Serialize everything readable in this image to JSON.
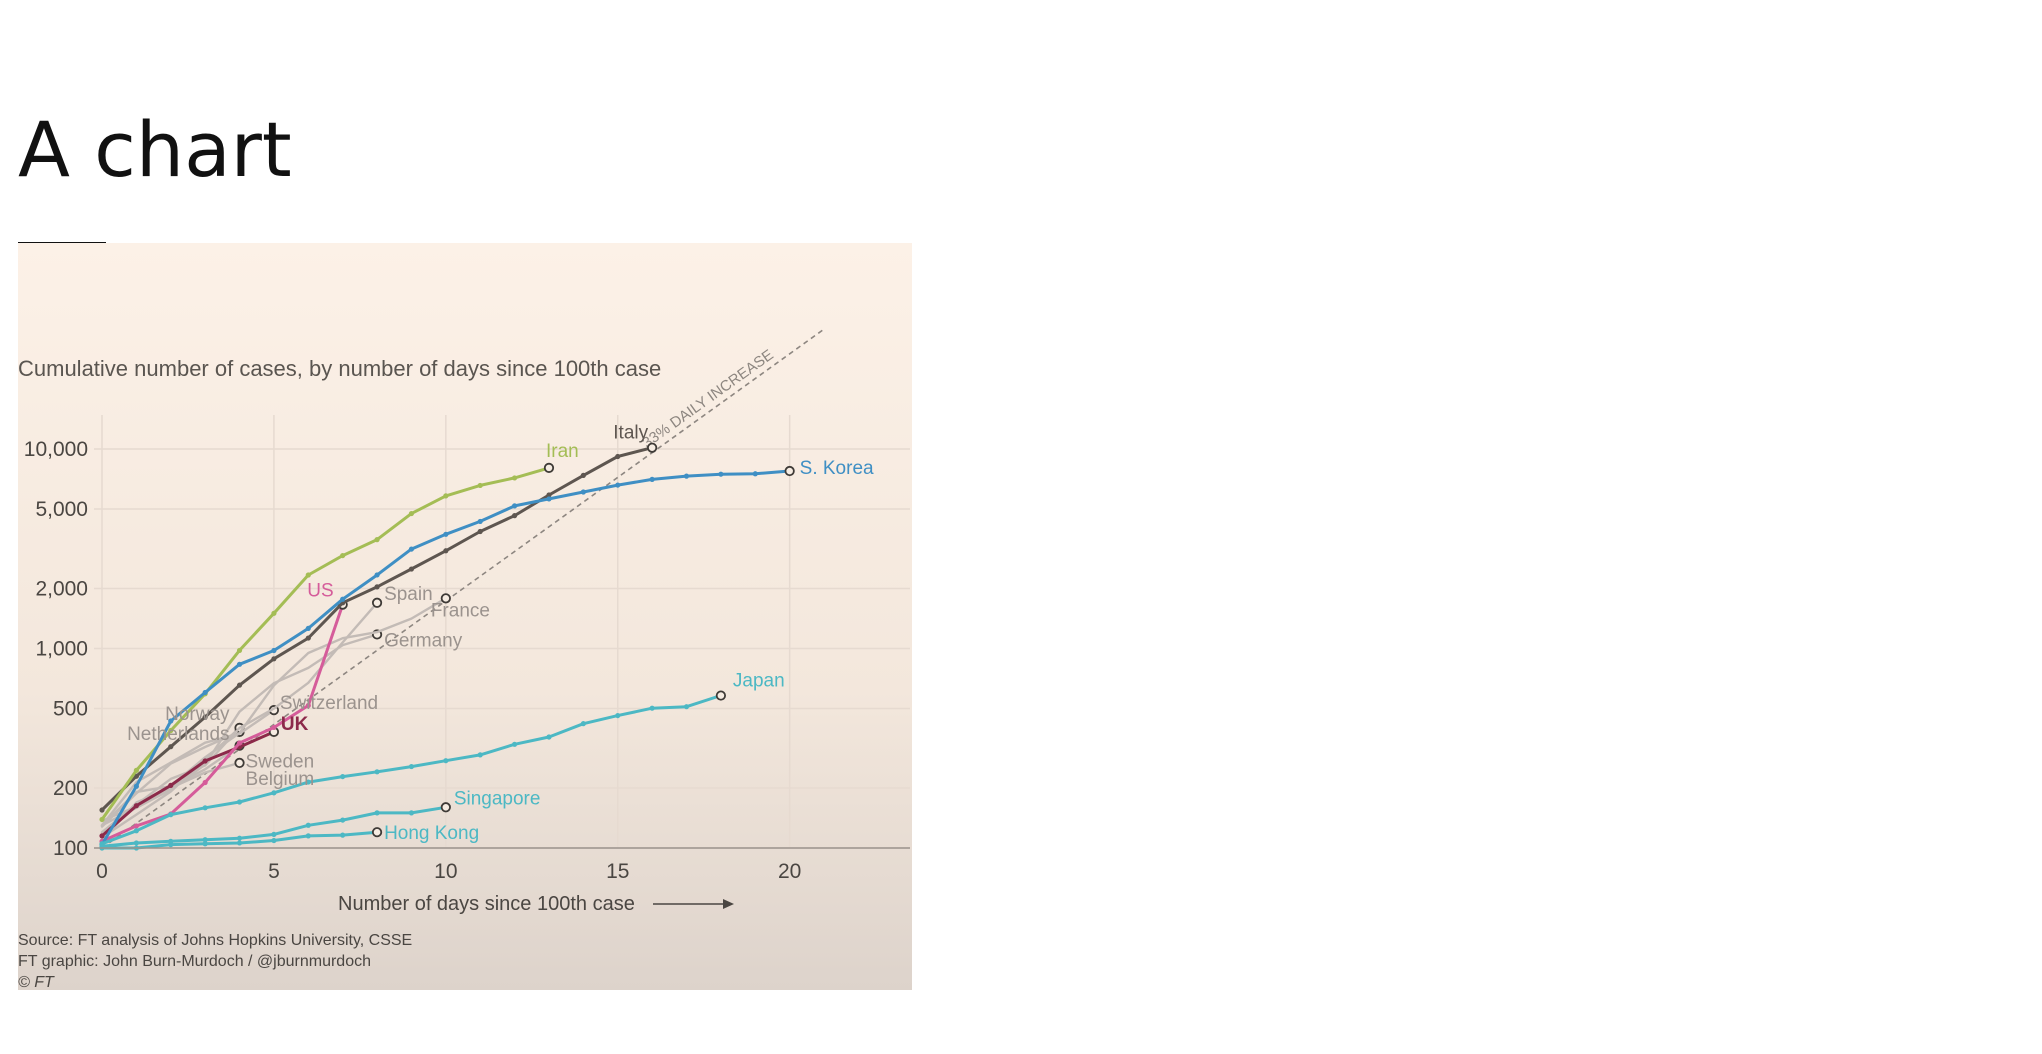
{
  "slide": {
    "title": "A chart"
  },
  "chart_data": {
    "type": "line",
    "title": "",
    "subtitle": "Cumulative number of cases, by number of days since 100th case",
    "xlabel": "Number of days since 100th case",
    "ylabel": "",
    "xlim": [
      0,
      23.5
    ],
    "ylim": [
      100,
      13500
    ],
    "yscale": "log",
    "grid": true,
    "legend": "direct labels",
    "xticks": [
      0,
      5,
      10,
      15,
      20
    ],
    "xtick_labels": [
      "0",
      "5",
      "10",
      "15",
      "20"
    ],
    "yticks": [
      100,
      200,
      500,
      1000,
      2000,
      5000,
      10000
    ],
    "ytick_labels": [
      "100",
      "200",
      "500",
      "1,000",
      "2,000",
      "5,000",
      "10,000"
    ],
    "reference_line": {
      "label": "33% DAILY INCREASE",
      "start": [
        0,
        100
      ],
      "daily_growth": 0.33,
      "x_end": 21
    },
    "series": [
      {
        "name": "Netherlands",
        "color": "#c3bbb6",
        "highlight": false,
        "points": [
          [
            0,
            128
          ],
          [
            1,
            188
          ],
          [
            2,
            265
          ],
          [
            3,
            321
          ],
          [
            4,
            382
          ]
        ]
      },
      {
        "name": "Norway",
        "color": "#c3bbb6",
        "highlight": false,
        "points": [
          [
            0,
            113
          ],
          [
            1,
            147
          ],
          [
            2,
            192
          ],
          [
            3,
            277
          ],
          [
            4,
            400
          ]
        ]
      },
      {
        "name": "Sweden",
        "color": "#c3bbb6",
        "highlight": false,
        "points": [
          [
            0,
            137
          ],
          [
            1,
            161
          ],
          [
            2,
            203
          ],
          [
            3,
            248
          ],
          [
            4,
            326
          ]
        ]
      },
      {
        "name": "Belgium",
        "color": "#c3bbb6",
        "highlight": false,
        "points": [
          [
            0,
            109
          ],
          [
            1,
            169
          ],
          [
            2,
            200
          ],
          [
            3,
            239
          ],
          [
            4,
            267
          ]
        ]
      },
      {
        "name": "Switzerland",
        "color": "#c3bbb6",
        "highlight": false,
        "points": [
          [
            0,
            130
          ],
          [
            1,
            214
          ],
          [
            2,
            268
          ],
          [
            3,
            337
          ],
          [
            4,
            374
          ],
          [
            5,
            491
          ]
        ]
      },
      {
        "name": "Germany",
        "color": "#c3bbb6",
        "highlight": false,
        "points": [
          [
            0,
            130
          ],
          [
            1,
            159
          ],
          [
            2,
            196
          ],
          [
            3,
            262
          ],
          [
            4,
            482
          ],
          [
            5,
            670
          ],
          [
            6,
            799
          ],
          [
            7,
            1040
          ],
          [
            8,
            1176
          ]
        ]
      },
      {
        "name": "Spain",
        "color": "#c3bbb6",
        "highlight": false,
        "points": [
          [
            0,
            120
          ],
          [
            1,
            165
          ],
          [
            2,
            222
          ],
          [
            3,
            259
          ],
          [
            4,
            400
          ],
          [
            5,
            500
          ],
          [
            6,
            673
          ],
          [
            7,
            1073
          ],
          [
            8,
            1695
          ]
        ]
      },
      {
        "name": "France",
        "color": "#c3bbb6",
        "highlight": false,
        "points": [
          [
            0,
            130
          ],
          [
            1,
            191
          ],
          [
            2,
            204
          ],
          [
            3,
            285
          ],
          [
            4,
            377
          ],
          [
            5,
            653
          ],
          [
            6,
            949
          ],
          [
            7,
            1126
          ],
          [
            8,
            1209
          ],
          [
            9,
            1412
          ],
          [
            10,
            1784
          ]
        ]
      },
      {
        "name": "UK",
        "color": "#8c2a4a",
        "highlight": true,
        "points": [
          [
            0,
            115
          ],
          [
            1,
            163
          ],
          [
            2,
            206
          ],
          [
            3,
            273
          ],
          [
            4,
            321
          ],
          [
            5,
            382
          ]
        ]
      },
      {
        "name": "US",
        "color": "#d55c9a",
        "highlight": true,
        "points": [
          [
            0,
            108
          ],
          [
            1,
            129
          ],
          [
            2,
            148
          ],
          [
            3,
            213
          ],
          [
            4,
            336
          ],
          [
            5,
            402
          ],
          [
            6,
            518
          ],
          [
            7,
            1660
          ]
        ]
      },
      {
        "name": "Italy",
        "color": "#5e5650",
        "highlight": true,
        "points": [
          [
            0,
            155
          ],
          [
            1,
            229
          ],
          [
            2,
            322
          ],
          [
            3,
            453
          ],
          [
            4,
            655
          ],
          [
            5,
            888
          ],
          [
            6,
            1128
          ],
          [
            7,
            1694
          ],
          [
            8,
            2036
          ],
          [
            9,
            2502
          ],
          [
            10,
            3089
          ],
          [
            11,
            3858
          ],
          [
            12,
            4636
          ],
          [
            13,
            5883
          ],
          [
            14,
            7375
          ],
          [
            15,
            9172
          ],
          [
            16,
            10149
          ]
        ]
      },
      {
        "name": "Iran",
        "color": "#a4bd55",
        "highlight": true,
        "points": [
          [
            0,
            139
          ],
          [
            1,
            245
          ],
          [
            2,
            388
          ],
          [
            3,
            593
          ],
          [
            4,
            978
          ],
          [
            5,
            1501
          ],
          [
            6,
            2336
          ],
          [
            7,
            2922
          ],
          [
            8,
            3513
          ],
          [
            9,
            4747
          ],
          [
            10,
            5823
          ],
          [
            11,
            6566
          ],
          [
            12,
            7161
          ],
          [
            13,
            8042
          ]
        ]
      },
      {
        "name": "S. Korea",
        "color": "#3f8fc4",
        "highlight": true,
        "points": [
          [
            0,
            104
          ],
          [
            1,
            204
          ],
          [
            2,
            433
          ],
          [
            3,
            602
          ],
          [
            4,
            833
          ],
          [
            5,
            977
          ],
          [
            6,
            1261
          ],
          [
            7,
            1766
          ],
          [
            8,
            2337
          ],
          [
            9,
            3150
          ],
          [
            10,
            3736
          ],
          [
            11,
            4335
          ],
          [
            12,
            5186
          ],
          [
            13,
            5621
          ],
          [
            14,
            6088
          ],
          [
            15,
            6593
          ],
          [
            16,
            7041
          ],
          [
            17,
            7313
          ],
          [
            18,
            7478
          ],
          [
            19,
            7513
          ],
          [
            20,
            7755
          ]
        ]
      },
      {
        "name": "Japan",
        "color": "#4cb8c4",
        "highlight": true,
        "points": [
          [
            0,
            105
          ],
          [
            1,
            122
          ],
          [
            2,
            147
          ],
          [
            3,
            159
          ],
          [
            4,
            170
          ],
          [
            5,
            189
          ],
          [
            6,
            214
          ],
          [
            7,
            228
          ],
          [
            8,
            241
          ],
          [
            9,
            256
          ],
          [
            10,
            274
          ],
          [
            11,
            293
          ],
          [
            12,
            331
          ],
          [
            13,
            360
          ],
          [
            14,
            420
          ],
          [
            15,
            461
          ],
          [
            16,
            502
          ],
          [
            17,
            511
          ],
          [
            18,
            581
          ]
        ]
      },
      {
        "name": "Singapore",
        "color": "#4cb8c4",
        "highlight": true,
        "points": [
          [
            0,
            102
          ],
          [
            1,
            106
          ],
          [
            2,
            108
          ],
          [
            3,
            110
          ],
          [
            4,
            112
          ],
          [
            5,
            117
          ],
          [
            6,
            130
          ],
          [
            7,
            138
          ],
          [
            8,
            150
          ],
          [
            9,
            150
          ],
          [
            10,
            160
          ]
        ]
      },
      {
        "name": "Hong Kong",
        "color": "#4cb8c4",
        "highlight": true,
        "points": [
          [
            0,
            100
          ],
          [
            1,
            100
          ],
          [
            2,
            104
          ],
          [
            3,
            105
          ],
          [
            4,
            106
          ],
          [
            5,
            109
          ],
          [
            6,
            115
          ],
          [
            7,
            116
          ],
          [
            8,
            120
          ]
        ]
      }
    ],
    "source_lines": [
      "Source: FT analysis of Johns Hopkins University, CSSE",
      "FT graphic: John Burn-Murdoch / @jburnmurdoch",
      "© FT"
    ]
  }
}
